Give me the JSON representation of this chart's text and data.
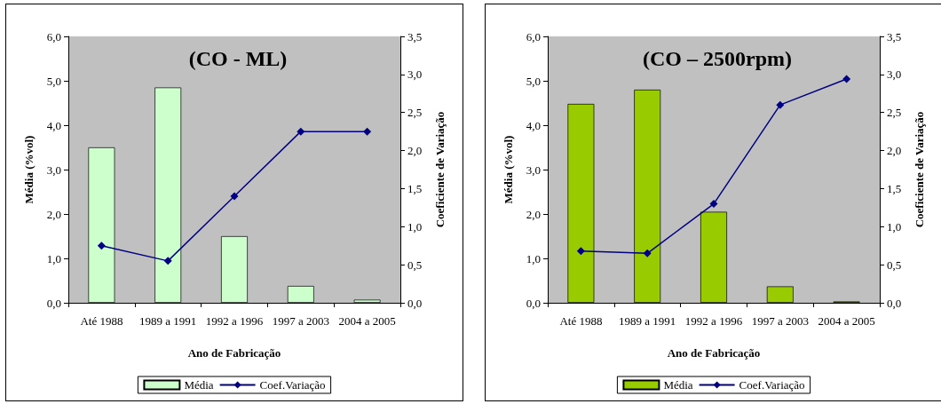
{
  "chart_data": [
    {
      "type": "bar",
      "title": "(CO - ML)",
      "xlabel": "Ano de Fabricação",
      "ylabel": "Média (%vol)",
      "y2label": "Coeficiente de Variação",
      "categories": [
        "Até 1988",
        "1989 a 1991",
        "1992 a 1996",
        "1997 a 2003",
        "2004 a 2005"
      ],
      "series": [
        {
          "name": "Média",
          "color": "#ccffcc",
          "values": [
            3.5,
            4.85,
            1.5,
            0.38,
            0.07
          ]
        },
        {
          "name": "Coef.Variação",
          "type": "line",
          "axis": "y2",
          "color": "#000080",
          "values": [
            0.75,
            0.55,
            1.4,
            2.25,
            2.25
          ]
        }
      ],
      "ylim": [
        0,
        6
      ],
      "yticks": [
        {
          "value": 0,
          "label": "0,0"
        },
        {
          "value": 1,
          "label": "1,0"
        },
        {
          "value": 2,
          "label": "2,0"
        },
        {
          "value": 3,
          "label": "3,0"
        },
        {
          "value": 4,
          "label": "4,0"
        },
        {
          "value": 5,
          "label": "5,0"
        },
        {
          "value": 6,
          "label": "6,0"
        }
      ],
      "y2lim": [
        0,
        3.5
      ],
      "y2ticks": [
        {
          "value": 0,
          "label": "0,0"
        },
        {
          "value": 0.5,
          "label": "0,5"
        },
        {
          "value": 1,
          "label": "1,0"
        },
        {
          "value": 1.5,
          "label": "1,5"
        },
        {
          "value": 2,
          "label": "2,0"
        },
        {
          "value": 2.5,
          "label": "2,5"
        },
        {
          "value": 3,
          "label": "3,0"
        },
        {
          "value": 3.5,
          "label": "3,5"
        }
      ],
      "grid": false,
      "legend": "bottom",
      "marker": "diamond",
      "line_style": "solid"
    },
    {
      "type": "bar",
      "title": "(CO – 2500rpm)",
      "xlabel": "Ano de Fabricação",
      "ylabel": "Média (%vol)",
      "y2label": "Coeficiente de Variação",
      "categories": [
        "Até 1988",
        "1989 a 1991",
        "1992 a 1996",
        "1997 a 2003",
        "2004 a 2005"
      ],
      "series": [
        {
          "name": "Média",
          "color": "#99cc00",
          "values": [
            4.48,
            4.8,
            2.05,
            0.37,
            0.03
          ]
        },
        {
          "name": "Coef.Variação",
          "type": "line",
          "axis": "y2",
          "color": "#000080",
          "values": [
            0.68,
            0.65,
            1.3,
            2.6,
            2.94
          ]
        }
      ],
      "ylim": [
        0,
        6
      ],
      "yticks": [
        {
          "value": 0,
          "label": "0,0"
        },
        {
          "value": 1,
          "label": "1,0"
        },
        {
          "value": 2,
          "label": "2,0"
        },
        {
          "value": 3,
          "label": "3,0"
        },
        {
          "value": 4,
          "label": "4,0"
        },
        {
          "value": 5,
          "label": "5,0"
        },
        {
          "value": 6,
          "label": "6,0"
        }
      ],
      "y2lim": [
        0,
        3.5
      ],
      "y2ticks": [
        {
          "value": 0,
          "label": "0,0"
        },
        {
          "value": 0.5,
          "label": "0,5"
        },
        {
          "value": 1,
          "label": "1,0"
        },
        {
          "value": 1.5,
          "label": "1,5"
        },
        {
          "value": 2,
          "label": "2,0"
        },
        {
          "value": 2.5,
          "label": "2,5"
        },
        {
          "value": 3,
          "label": "3,0"
        },
        {
          "value": 3.5,
          "label": "3,5"
        }
      ],
      "grid": false,
      "legend": "bottom",
      "marker": "diamond",
      "line_style": "solid"
    }
  ]
}
